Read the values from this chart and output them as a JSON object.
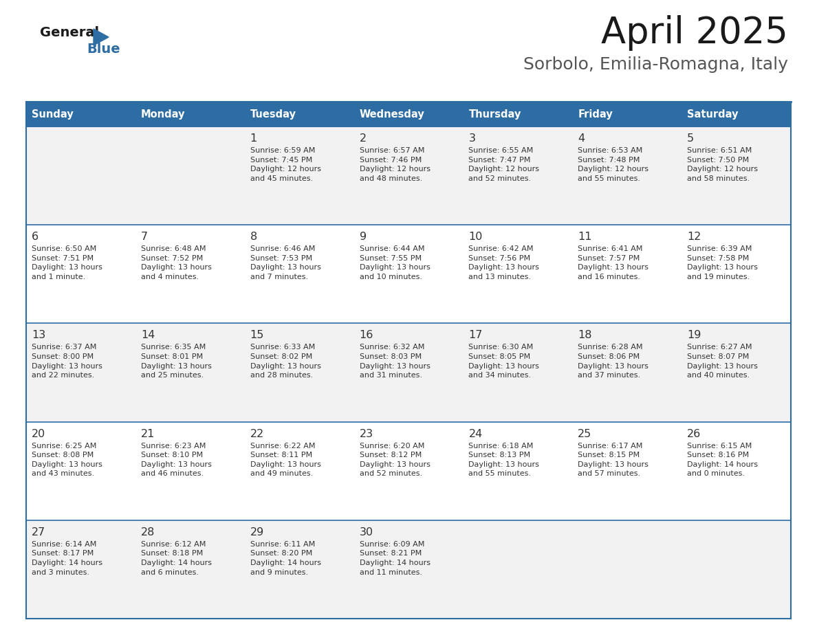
{
  "title": "April 2025",
  "subtitle": "Sorbolo, Emilia-Romagna, Italy",
  "header_bg_color": "#2E6DA4",
  "header_text_color": "#FFFFFF",
  "cell_bg_even": "#F2F2F2",
  "cell_bg_odd": "#FFFFFF",
  "day_number_color": "#333333",
  "day_text_color": "#333333",
  "border_color": "#2E6DA4",
  "sep_line_color": "#2E6DA4",
  "days_of_week": [
    "Sunday",
    "Monday",
    "Tuesday",
    "Wednesday",
    "Thursday",
    "Friday",
    "Saturday"
  ],
  "weeks": [
    [
      {
        "day": "",
        "info": ""
      },
      {
        "day": "",
        "info": ""
      },
      {
        "day": "1",
        "info": "Sunrise: 6:59 AM\nSunset: 7:45 PM\nDaylight: 12 hours\nand 45 minutes."
      },
      {
        "day": "2",
        "info": "Sunrise: 6:57 AM\nSunset: 7:46 PM\nDaylight: 12 hours\nand 48 minutes."
      },
      {
        "day": "3",
        "info": "Sunrise: 6:55 AM\nSunset: 7:47 PM\nDaylight: 12 hours\nand 52 minutes."
      },
      {
        "day": "4",
        "info": "Sunrise: 6:53 AM\nSunset: 7:48 PM\nDaylight: 12 hours\nand 55 minutes."
      },
      {
        "day": "5",
        "info": "Sunrise: 6:51 AM\nSunset: 7:50 PM\nDaylight: 12 hours\nand 58 minutes."
      }
    ],
    [
      {
        "day": "6",
        "info": "Sunrise: 6:50 AM\nSunset: 7:51 PM\nDaylight: 13 hours\nand 1 minute."
      },
      {
        "day": "7",
        "info": "Sunrise: 6:48 AM\nSunset: 7:52 PM\nDaylight: 13 hours\nand 4 minutes."
      },
      {
        "day": "8",
        "info": "Sunrise: 6:46 AM\nSunset: 7:53 PM\nDaylight: 13 hours\nand 7 minutes."
      },
      {
        "day": "9",
        "info": "Sunrise: 6:44 AM\nSunset: 7:55 PM\nDaylight: 13 hours\nand 10 minutes."
      },
      {
        "day": "10",
        "info": "Sunrise: 6:42 AM\nSunset: 7:56 PM\nDaylight: 13 hours\nand 13 minutes."
      },
      {
        "day": "11",
        "info": "Sunrise: 6:41 AM\nSunset: 7:57 PM\nDaylight: 13 hours\nand 16 minutes."
      },
      {
        "day": "12",
        "info": "Sunrise: 6:39 AM\nSunset: 7:58 PM\nDaylight: 13 hours\nand 19 minutes."
      }
    ],
    [
      {
        "day": "13",
        "info": "Sunrise: 6:37 AM\nSunset: 8:00 PM\nDaylight: 13 hours\nand 22 minutes."
      },
      {
        "day": "14",
        "info": "Sunrise: 6:35 AM\nSunset: 8:01 PM\nDaylight: 13 hours\nand 25 minutes."
      },
      {
        "day": "15",
        "info": "Sunrise: 6:33 AM\nSunset: 8:02 PM\nDaylight: 13 hours\nand 28 minutes."
      },
      {
        "day": "16",
        "info": "Sunrise: 6:32 AM\nSunset: 8:03 PM\nDaylight: 13 hours\nand 31 minutes."
      },
      {
        "day": "17",
        "info": "Sunrise: 6:30 AM\nSunset: 8:05 PM\nDaylight: 13 hours\nand 34 minutes."
      },
      {
        "day": "18",
        "info": "Sunrise: 6:28 AM\nSunset: 8:06 PM\nDaylight: 13 hours\nand 37 minutes."
      },
      {
        "day": "19",
        "info": "Sunrise: 6:27 AM\nSunset: 8:07 PM\nDaylight: 13 hours\nand 40 minutes."
      }
    ],
    [
      {
        "day": "20",
        "info": "Sunrise: 6:25 AM\nSunset: 8:08 PM\nDaylight: 13 hours\nand 43 minutes."
      },
      {
        "day": "21",
        "info": "Sunrise: 6:23 AM\nSunset: 8:10 PM\nDaylight: 13 hours\nand 46 minutes."
      },
      {
        "day": "22",
        "info": "Sunrise: 6:22 AM\nSunset: 8:11 PM\nDaylight: 13 hours\nand 49 minutes."
      },
      {
        "day": "23",
        "info": "Sunrise: 6:20 AM\nSunset: 8:12 PM\nDaylight: 13 hours\nand 52 minutes."
      },
      {
        "day": "24",
        "info": "Sunrise: 6:18 AM\nSunset: 8:13 PM\nDaylight: 13 hours\nand 55 minutes."
      },
      {
        "day": "25",
        "info": "Sunrise: 6:17 AM\nSunset: 8:15 PM\nDaylight: 13 hours\nand 57 minutes."
      },
      {
        "day": "26",
        "info": "Sunrise: 6:15 AM\nSunset: 8:16 PM\nDaylight: 14 hours\nand 0 minutes."
      }
    ],
    [
      {
        "day": "27",
        "info": "Sunrise: 6:14 AM\nSunset: 8:17 PM\nDaylight: 14 hours\nand 3 minutes."
      },
      {
        "day": "28",
        "info": "Sunrise: 6:12 AM\nSunset: 8:18 PM\nDaylight: 14 hours\nand 6 minutes."
      },
      {
        "day": "29",
        "info": "Sunrise: 6:11 AM\nSunset: 8:20 PM\nDaylight: 14 hours\nand 9 minutes."
      },
      {
        "day": "30",
        "info": "Sunrise: 6:09 AM\nSunset: 8:21 PM\nDaylight: 14 hours\nand 11 minutes."
      },
      {
        "day": "",
        "info": ""
      },
      {
        "day": "",
        "info": ""
      },
      {
        "day": "",
        "info": ""
      }
    ]
  ],
  "fig_width": 11.88,
  "fig_height": 9.18,
  "dpi": 100
}
